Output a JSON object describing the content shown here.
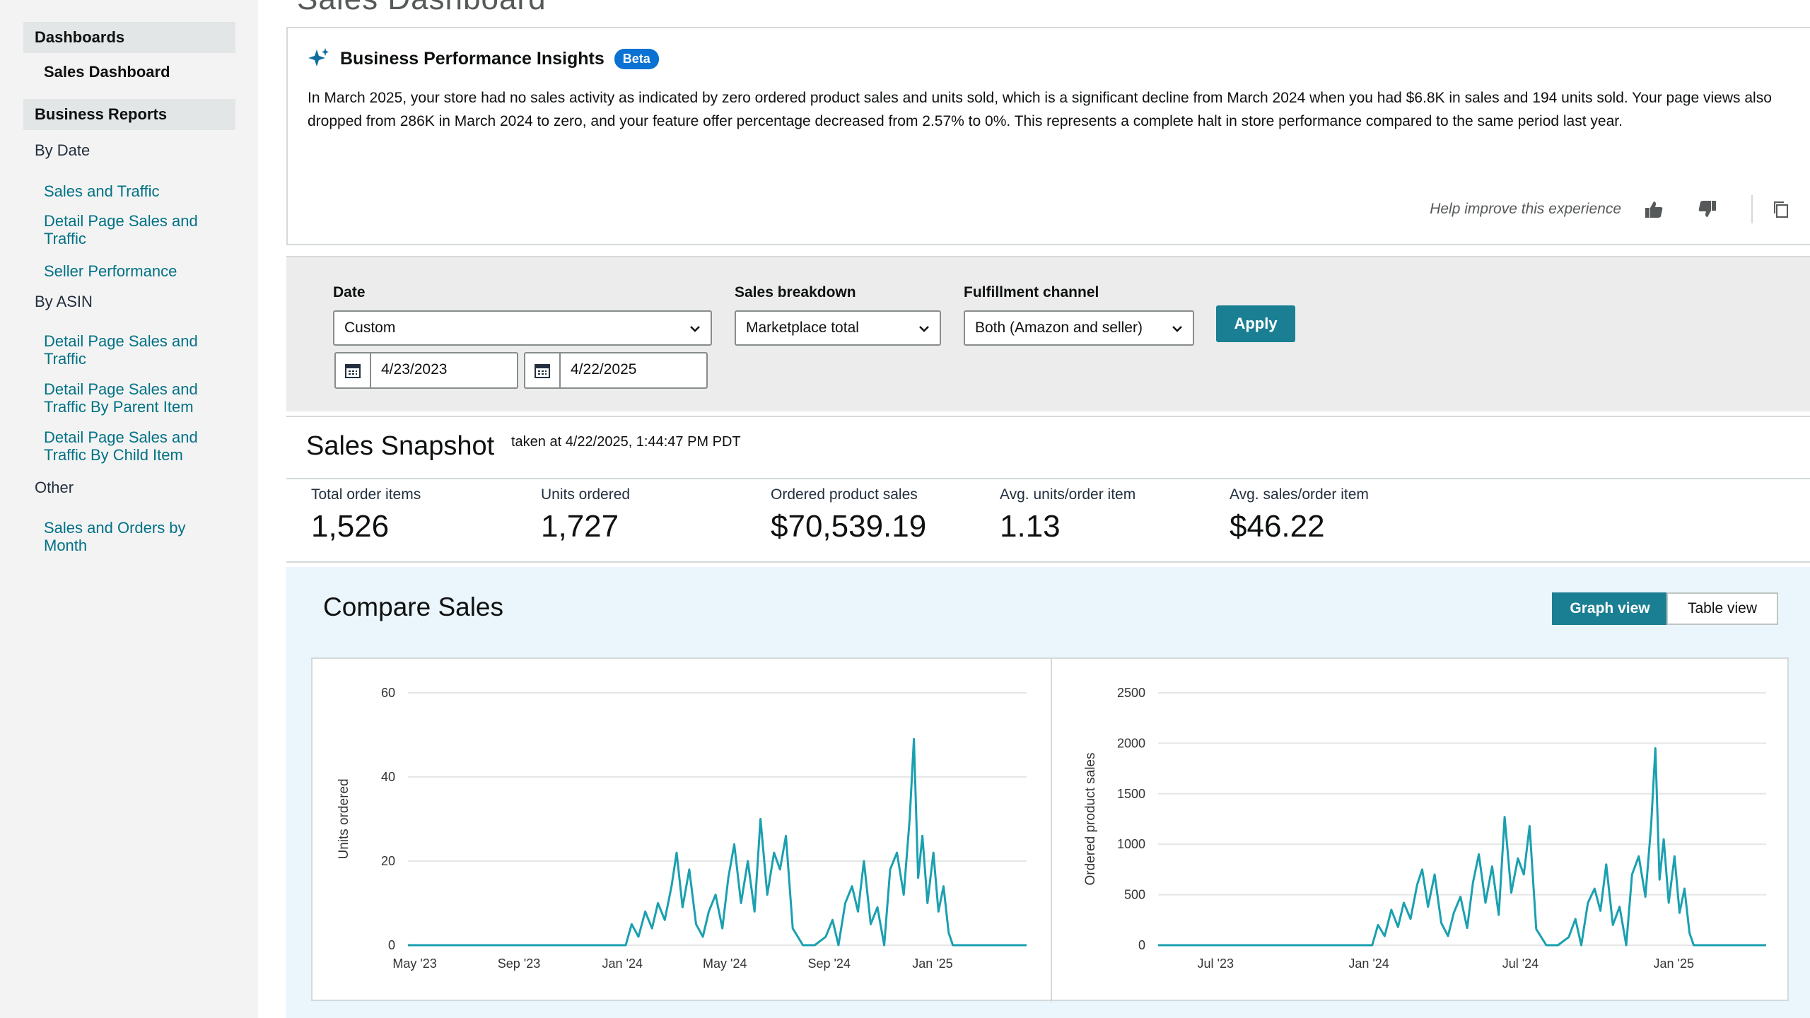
{
  "page_heading_cut": "Sales Dashboard",
  "sidebar": {
    "dashboards_header": "Dashboards",
    "sales_dashboard": "Sales Dashboard",
    "business_reports_header": "Business Reports",
    "by_date": "By Date",
    "sales_and_traffic": "Sales and Traffic",
    "detail_page_sales_traffic": "Detail Page Sales and Traffic",
    "seller_performance": "Seller Performance",
    "by_asin": "By ASIN",
    "asin_detail_page": "Detail Page Sales and Traffic",
    "asin_parent": "Detail Page Sales and Traffic By Parent Item",
    "asin_child": "Detail Page Sales and Traffic By Child Item",
    "other": "Other",
    "sales_orders_month": "Sales and Orders by Month"
  },
  "insights": {
    "title": "Business Performance Insights",
    "badge": "Beta",
    "body": "In March 2025, your store had no sales activity as indicated by zero ordered product sales and units sold, which is a significant decline from March 2024 when you had $6.8K in sales and 194 units sold. Your page views also dropped from 286K in March 2024 to zero, and your feature offer percentage decreased from 2.57% to 0%. This represents a complete halt in store performance compared to the same period last year.",
    "help_text": "Help improve this experience",
    "icons": [
      "sparkle-icon",
      "thumbs-up-icon",
      "thumbs-down-icon",
      "copy-icon"
    ]
  },
  "filters": {
    "date_label": "Date",
    "date_value": "Custom",
    "start_date": "4/23/2023",
    "end_date": "4/22/2025",
    "breakdown_label": "Sales breakdown",
    "breakdown_value": "Marketplace total",
    "channel_label": "Fulfillment channel",
    "channel_value": "Both (Amazon and seller)",
    "apply": "Apply"
  },
  "snapshot": {
    "title": "Sales Snapshot",
    "taken_at": "taken at 4/22/2025, 1:44:47 PM PDT",
    "metrics": [
      {
        "label": "Total order items",
        "value": "1,526"
      },
      {
        "label": "Units ordered",
        "value": "1,727"
      },
      {
        "label": "Ordered product sales",
        "value": "$70,539.19"
      },
      {
        "label": "Avg. units/order item",
        "value": "1.13"
      },
      {
        "label": "Avg. sales/order item",
        "value": "$46.22"
      }
    ]
  },
  "compare": {
    "title": "Compare Sales",
    "graph_view": "Graph view",
    "table_view": "Table view"
  },
  "colors": {
    "accent": "#1b7f93",
    "line": "#1aa0b0",
    "beta": "#0972d3"
  },
  "chart_data": [
    {
      "type": "line",
      "ylabel": "Units ordered",
      "ylim": [
        0,
        60
      ],
      "yticks": [
        0,
        20,
        40,
        60
      ],
      "xticks": [
        "May '23",
        "Sep '23",
        "Jan '24",
        "May '24",
        "Sep '24",
        "Jan '25"
      ],
      "grid": true,
      "x": [
        "2023-04-23",
        "2023-06-01",
        "2023-08-01",
        "2023-10-01",
        "2023-12-01",
        "2024-01-05",
        "2024-01-12",
        "2024-01-20",
        "2024-01-28",
        "2024-02-05",
        "2024-02-12",
        "2024-02-20",
        "2024-02-28",
        "2024-03-05",
        "2024-03-12",
        "2024-03-20",
        "2024-03-28",
        "2024-04-05",
        "2024-04-12",
        "2024-04-20",
        "2024-04-28",
        "2024-05-05",
        "2024-05-12",
        "2024-05-20",
        "2024-05-28",
        "2024-06-05",
        "2024-06-12",
        "2024-06-20",
        "2024-06-28",
        "2024-07-05",
        "2024-07-12",
        "2024-07-20",
        "2024-08-01",
        "2024-08-15",
        "2024-08-28",
        "2024-09-05",
        "2024-09-12",
        "2024-09-20",
        "2024-09-28",
        "2024-10-05",
        "2024-10-12",
        "2024-10-20",
        "2024-10-28",
        "2024-11-05",
        "2024-11-12",
        "2024-11-20",
        "2024-11-28",
        "2024-12-05",
        "2024-12-10",
        "2024-12-15",
        "2024-12-20",
        "2024-12-26",
        "2025-01-02",
        "2025-01-08",
        "2025-01-14",
        "2025-01-20",
        "2025-01-25",
        "2025-02-05",
        "2025-03-01",
        "2025-04-22"
      ],
      "values": [
        0,
        0,
        0,
        0,
        0,
        0,
        5,
        2,
        8,
        4,
        10,
        6,
        14,
        22,
        9,
        18,
        5,
        2,
        8,
        12,
        4,
        16,
        24,
        10,
        20,
        8,
        30,
        12,
        22,
        18,
        26,
        4,
        0,
        0,
        2,
        6,
        0,
        10,
        14,
        8,
        20,
        5,
        9,
        0,
        18,
        22,
        12,
        30,
        49,
        16,
        26,
        10,
        22,
        8,
        14,
        3,
        0,
        0,
        0,
        0
      ]
    },
    {
      "type": "line",
      "ylabel": "Ordered product sales",
      "ylim": [
        0,
        2500
      ],
      "yticks": [
        0,
        500,
        1000,
        1500,
        2000,
        2500
      ],
      "xticks": [
        "Jul '23",
        "Jan '24",
        "Jul '24",
        "Jan '25"
      ],
      "grid": true,
      "x": [
        "2023-04-23",
        "2023-06-01",
        "2023-08-01",
        "2023-10-01",
        "2023-12-01",
        "2024-01-05",
        "2024-01-12",
        "2024-01-20",
        "2024-01-28",
        "2024-02-05",
        "2024-02-12",
        "2024-02-20",
        "2024-02-28",
        "2024-03-05",
        "2024-03-12",
        "2024-03-20",
        "2024-03-28",
        "2024-04-05",
        "2024-04-12",
        "2024-04-20",
        "2024-04-28",
        "2024-05-05",
        "2024-05-12",
        "2024-05-20",
        "2024-05-28",
        "2024-06-05",
        "2024-06-12",
        "2024-06-20",
        "2024-06-28",
        "2024-07-05",
        "2024-07-12",
        "2024-07-20",
        "2024-08-01",
        "2024-08-15",
        "2024-08-28",
        "2024-09-05",
        "2024-09-12",
        "2024-09-20",
        "2024-09-28",
        "2024-10-05",
        "2024-10-12",
        "2024-10-20",
        "2024-10-28",
        "2024-11-05",
        "2024-11-12",
        "2024-11-20",
        "2024-11-28",
        "2024-12-05",
        "2024-12-10",
        "2024-12-15",
        "2024-12-20",
        "2024-12-26",
        "2025-01-02",
        "2025-01-08",
        "2025-01-14",
        "2025-01-20",
        "2025-01-25",
        "2025-02-05",
        "2025-03-01",
        "2025-04-22"
      ],
      "values": [
        0,
        0,
        0,
        0,
        0,
        0,
        200,
        90,
        350,
        180,
        420,
        260,
        600,
        750,
        380,
        700,
        220,
        90,
        320,
        480,
        170,
        620,
        900,
        420,
        780,
        300,
        1270,
        520,
        860,
        700,
        1180,
        160,
        0,
        0,
        80,
        260,
        0,
        420,
        560,
        340,
        800,
        200,
        380,
        0,
        700,
        880,
        480,
        1200,
        1950,
        650,
        1050,
        420,
        880,
        320,
        560,
        120,
        0,
        0,
        0,
        0
      ]
    }
  ]
}
